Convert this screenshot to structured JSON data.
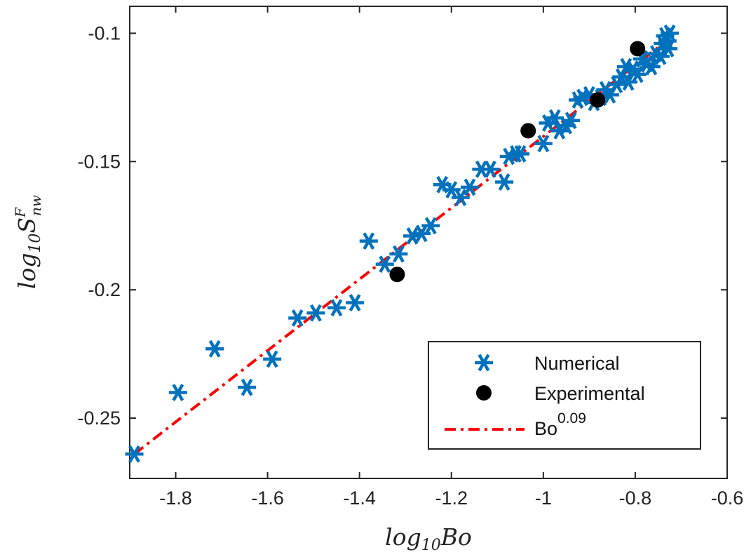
{
  "chart_data": {
    "type": "scatter",
    "xlabel": {
      "base": "log",
      "sub": "10",
      "rest": "Bo"
    },
    "ylabel": {
      "base": "log",
      "sub": "10",
      "var": "S",
      "sup": "F",
      "sub2": "nw"
    },
    "xlim": [
      -1.9,
      -0.6
    ],
    "ylim": [
      -0.2735,
      -0.0895
    ],
    "xticks": [
      -1.8,
      -1.6,
      -1.4,
      -1.2,
      -1.0,
      -0.8,
      -0.6
    ],
    "xtick_labels": [
      "-1.8",
      "-1.6",
      "-1.4",
      "-1.2",
      "-1",
      "-0.8",
      "-0.6"
    ],
    "yticks": [
      -0.25,
      -0.2,
      -0.15,
      -0.1
    ],
    "ytick_labels": [
      "-0.25",
      "-0.2",
      "-0.15",
      "-0.1"
    ],
    "grid": false,
    "legend_position": "lower-right",
    "series": [
      {
        "name": "Numerical",
        "marker": "asterisk",
        "color": "#0072BD",
        "points": [
          [
            -1.89,
            -0.264
          ],
          [
            -1.795,
            -0.24
          ],
          [
            -1.715,
            -0.223
          ],
          [
            -1.645,
            -0.238
          ],
          [
            -1.59,
            -0.227
          ],
          [
            -1.535,
            -0.211
          ],
          [
            -1.495,
            -0.209
          ],
          [
            -1.45,
            -0.207
          ],
          [
            -1.41,
            -0.205
          ],
          [
            -1.38,
            -0.181
          ],
          [
            -1.345,
            -0.19
          ],
          [
            -1.315,
            -0.186
          ],
          [
            -1.285,
            -0.179
          ],
          [
            -1.265,
            -0.178
          ],
          [
            -1.245,
            -0.175
          ],
          [
            -1.22,
            -0.159
          ],
          [
            -1.2,
            -0.161
          ],
          [
            -1.18,
            -0.164
          ],
          [
            -1.16,
            -0.16
          ],
          [
            -1.135,
            -0.153
          ],
          [
            -1.115,
            -0.153
          ],
          [
            -1.085,
            -0.158
          ],
          [
            -1.075,
            -0.148
          ],
          [
            -1.06,
            -0.147
          ],
          [
            -1.05,
            -0.147
          ],
          [
            -1.0,
            -0.143
          ],
          [
            -0.99,
            -0.135
          ],
          [
            -0.975,
            -0.133
          ],
          [
            -0.965,
            -0.138
          ],
          [
            -0.95,
            -0.136
          ],
          [
            -0.94,
            -0.134
          ],
          [
            -0.925,
            -0.126
          ],
          [
            -0.915,
            -0.125
          ],
          [
            -0.9,
            -0.124
          ],
          [
            -0.89,
            -0.127
          ],
          [
            -0.875,
            -0.125
          ],
          [
            -0.865,
            -0.122
          ],
          [
            -0.855,
            -0.124
          ],
          [
            -0.84,
            -0.12
          ],
          [
            -0.83,
            -0.117
          ],
          [
            -0.82,
            -0.113
          ],
          [
            -0.815,
            -0.119
          ],
          [
            -0.805,
            -0.114
          ],
          [
            -0.795,
            -0.116
          ],
          [
            -0.785,
            -0.11
          ],
          [
            -0.775,
            -0.112
          ],
          [
            -0.765,
            -0.113
          ],
          [
            -0.755,
            -0.108
          ],
          [
            -0.745,
            -0.109
          ],
          [
            -0.74,
            -0.104
          ],
          [
            -0.735,
            -0.101
          ],
          [
            -0.73,
            -0.103
          ],
          [
            -0.728,
            -0.106
          ],
          [
            -0.725,
            -0.1
          ]
        ]
      },
      {
        "name": "Experimental",
        "marker": "filled-circle",
        "color": "#000000",
        "points": [
          [
            -1.318,
            -0.194
          ],
          [
            -1.033,
            -0.138
          ],
          [
            -0.882,
            -0.126
          ],
          [
            -0.795,
            -0.106
          ]
        ]
      },
      {
        "name": "Bo",
        "name_sup": "0.09",
        "marker": "dash-dot-line",
        "color": "#FF0000",
        "points": [
          [
            -1.89,
            -0.264
          ],
          [
            -0.725,
            -0.102
          ]
        ]
      }
    ]
  }
}
